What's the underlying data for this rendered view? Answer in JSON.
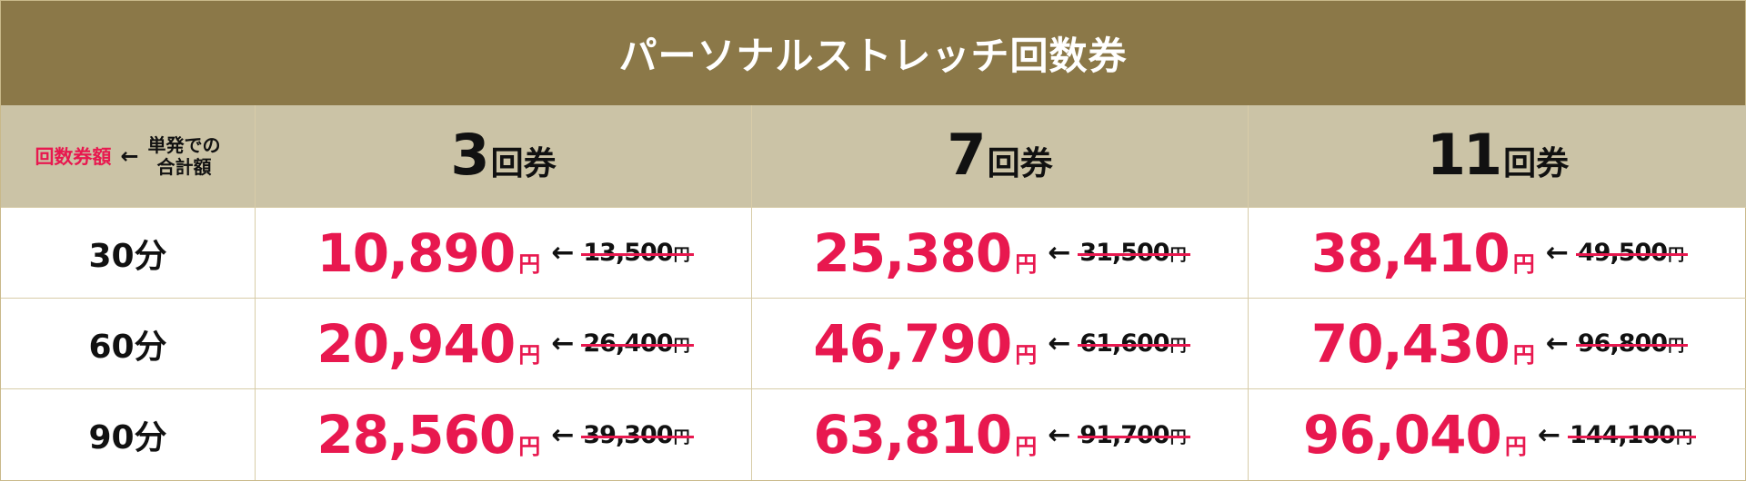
{
  "title": "パーソナルストレッチ回数券",
  "legend": {
    "ticket_amount": "回数券額",
    "arrow": "←",
    "single_total_line1": "単発での",
    "single_total_line2": "合計額"
  },
  "plans": [
    {
      "count": "3",
      "unit": "回券"
    },
    {
      "count": "7",
      "unit": "回券"
    },
    {
      "count": "11",
      "unit": "回券"
    }
  ],
  "currency": "円",
  "arrow": "←",
  "rows": [
    {
      "duration": "30分",
      "prices": [
        {
          "price": "10,890",
          "original": "13,500"
        },
        {
          "price": "25,380",
          "original": "31,500"
        },
        {
          "price": "38,410",
          "original": "49,500"
        }
      ]
    },
    {
      "duration": "60分",
      "prices": [
        {
          "price": "20,940",
          "original": "26,400"
        },
        {
          "price": "46,790",
          "original": "61,600"
        },
        {
          "price": "70,430",
          "original": "96,800"
        }
      ]
    },
    {
      "duration": "90分",
      "prices": [
        {
          "price": "28,560",
          "original": "39,300"
        },
        {
          "price": "63,810",
          "original": "91,700"
        },
        {
          "price": "96,040",
          "original": "144,100"
        }
      ]
    }
  ],
  "colors": {
    "title_bg": "#8b7848",
    "header_bg": "#cbc3a6",
    "accent_pink": "#e8184f",
    "border": "#d8cca8"
  }
}
